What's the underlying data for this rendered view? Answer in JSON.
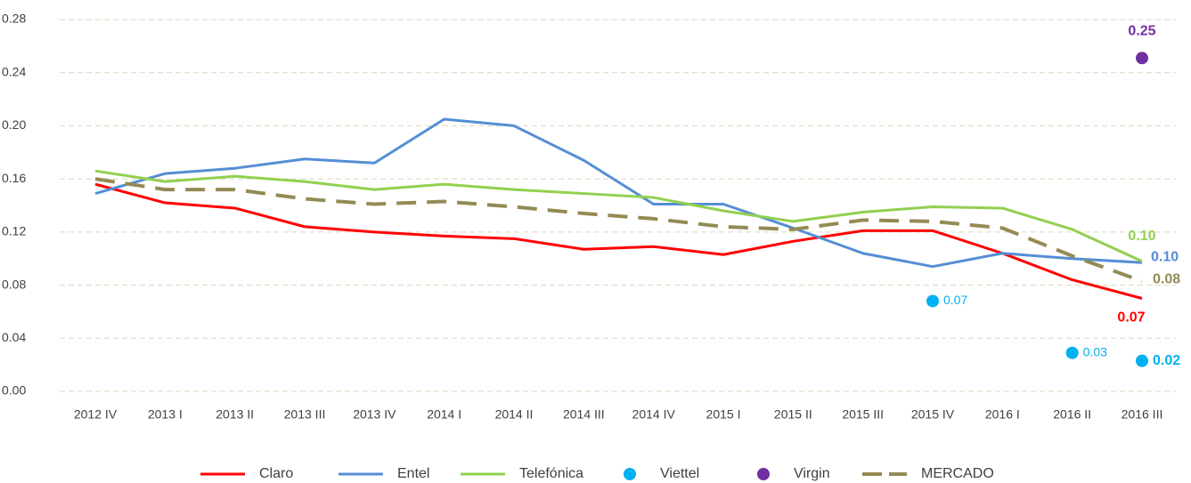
{
  "chart_data": {
    "type": "line",
    "categories": [
      "2012 IV",
      "2013 I",
      "2013 II",
      "2013 III",
      "2013 IV",
      "2014 I",
      "2014 II",
      "2014 III",
      "2014 IV",
      "2015 I",
      "2015 II",
      "2015 III",
      "2015 IV",
      "2016 I",
      "2016 II",
      "2016 III"
    ],
    "ylim": [
      0,
      0.28
    ],
    "yticks": [
      {
        "value": 0,
        "label": "0.00"
      },
      {
        "value": 0.04,
        "label": "0.04"
      },
      {
        "value": 0.08,
        "label": "0.08"
      },
      {
        "value": 0.12,
        "label": "0.12"
      },
      {
        "value": 0.16,
        "label": "0.16"
      },
      {
        "value": 0.2,
        "label": "0.20"
      },
      {
        "value": 0.24,
        "label": "0.24"
      },
      {
        "value": 0.28,
        "label": "0.28"
      }
    ],
    "grid": true,
    "legend": "bottom",
    "series": [
      {
        "name": "Claro",
        "color": "#ff0000",
        "style": "line",
        "values": [
          0.156,
          0.142,
          0.138,
          0.124,
          0.12,
          0.117,
          0.115,
          0.107,
          0.109,
          0.103,
          0.113,
          0.121,
          0.121,
          0.104,
          0.084,
          0.07
        ],
        "value_labels": [
          null,
          null,
          null,
          null,
          null,
          null,
          null,
          null,
          null,
          null,
          null,
          null,
          null,
          null,
          null,
          "0.07"
        ]
      },
      {
        "name": "Entel",
        "color": "#558ed5",
        "style": "line",
        "values": [
          0.149,
          0.164,
          0.168,
          0.175,
          0.172,
          0.205,
          0.2,
          0.174,
          0.141,
          0.141,
          0.123,
          0.104,
          0.094,
          0.104,
          0.1,
          0.097
        ],
        "value_labels": [
          null,
          null,
          null,
          null,
          null,
          null,
          null,
          null,
          null,
          null,
          null,
          null,
          null,
          null,
          null,
          "0.10"
        ]
      },
      {
        "name": "Telefónica",
        "color": "#92d050",
        "style": "line",
        "values": [
          0.166,
          0.158,
          0.162,
          0.158,
          0.152,
          0.156,
          0.152,
          0.149,
          0.146,
          0.136,
          0.128,
          0.135,
          0.139,
          0.138,
          0.122,
          0.098
        ],
        "value_labels": [
          null,
          null,
          null,
          null,
          null,
          null,
          null,
          null,
          null,
          null,
          null,
          null,
          null,
          null,
          null,
          "0.10"
        ]
      },
      {
        "name": "Viettel",
        "color": "#00b0f0",
        "style": "dot",
        "values": [
          null,
          null,
          null,
          null,
          null,
          null,
          null,
          null,
          null,
          null,
          null,
          null,
          0.068,
          null,
          0.029,
          0.023
        ],
        "value_labels": [
          null,
          null,
          null,
          null,
          null,
          null,
          null,
          null,
          null,
          null,
          null,
          null,
          "0.07",
          null,
          "0.03",
          "0.02"
        ]
      },
      {
        "name": "Virgin",
        "color": "#7030a0",
        "style": "dot",
        "values": [
          null,
          null,
          null,
          null,
          null,
          null,
          null,
          null,
          null,
          null,
          null,
          null,
          null,
          null,
          null,
          0.251
        ],
        "value_labels": [
          null,
          null,
          null,
          null,
          null,
          null,
          null,
          null,
          null,
          null,
          null,
          null,
          null,
          null,
          null,
          "0.25"
        ]
      },
      {
        "name": "MERCADO",
        "color": "#948a54",
        "style": "dashed",
        "values": [
          0.16,
          0.152,
          0.152,
          0.145,
          0.141,
          0.143,
          0.139,
          0.134,
          0.13,
          0.124,
          0.122,
          0.129,
          0.128,
          0.123,
          0.102,
          0.083
        ],
        "value_labels": [
          null,
          null,
          null,
          null,
          null,
          null,
          null,
          null,
          null,
          null,
          null,
          null,
          null,
          null,
          null,
          "0.08"
        ]
      }
    ]
  }
}
